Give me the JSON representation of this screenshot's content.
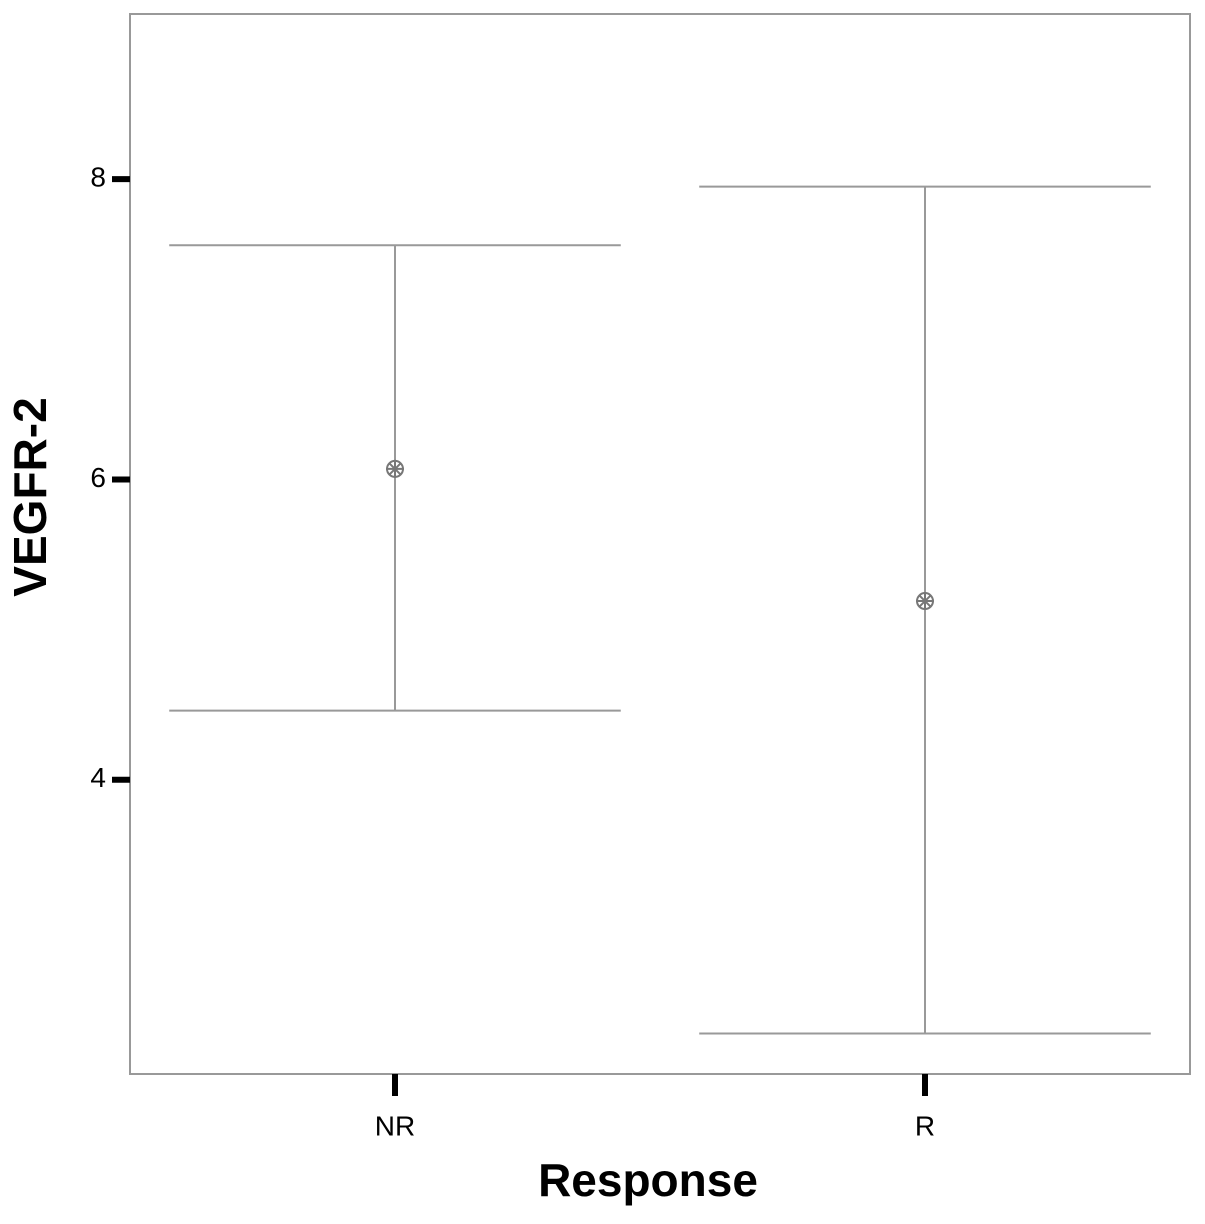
{
  "chart_data": {
    "type": "errorbar",
    "x_label": "Response",
    "y_label": "VEGFR-2",
    "categories": [
      "NR",
      "R"
    ],
    "values": [
      6.07,
      5.19
    ],
    "lower": [
      4.46,
      2.31
    ],
    "upper": [
      7.56,
      7.95
    ],
    "color": "#999999",
    "ylim": [
      2.04,
      9.1
    ],
    "yticks": [
      4,
      6,
      8
    ]
  }
}
